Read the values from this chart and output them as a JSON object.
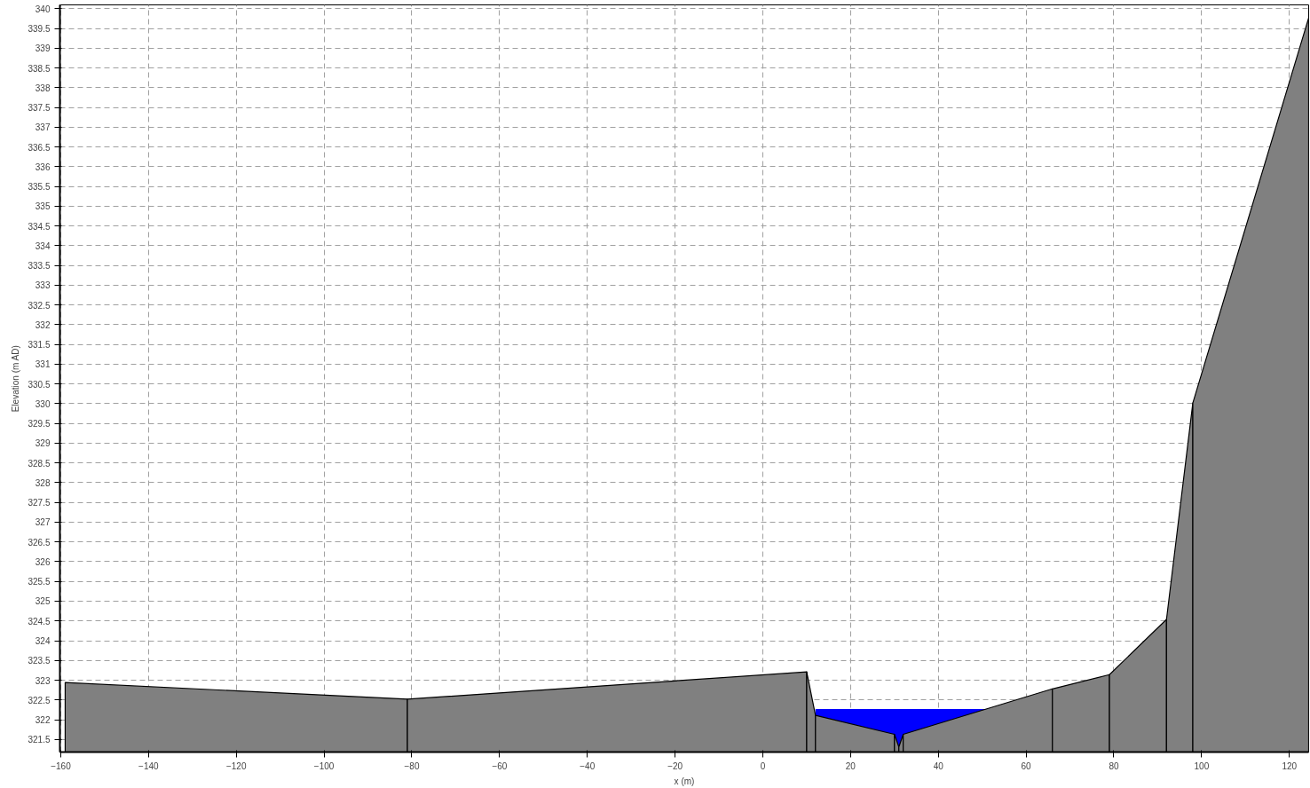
{
  "chart_data": {
    "type": "area",
    "xlabel": "x (m)",
    "ylabel": "Elevation (m AD)",
    "xlim": [
      -160.2,
      124.4
    ],
    "ylim": [
      321.18,
      340.1
    ],
    "xticks": [
      -160,
      -140,
      -120,
      -100,
      -80,
      -60,
      -40,
      -20,
      0,
      20,
      40,
      60,
      80,
      100,
      120
    ],
    "yticks": [
      321.5,
      322,
      322.5,
      323,
      323.5,
      324,
      324.5,
      325,
      325.5,
      326,
      326.5,
      327,
      327.5,
      328,
      328.5,
      329,
      329.5,
      330,
      330.5,
      331,
      331.5,
      332,
      332.5,
      333,
      333.5,
      334,
      334.5,
      335,
      335.5,
      336,
      336.5,
      337,
      337.5,
      338,
      338.5,
      339,
      339.5,
      340
    ],
    "grid": true,
    "line_style": "dashed",
    "series": [
      {
        "color": "#0000ff",
        "x": [
          12,
          51
        ],
        "values": [
          322.27,
          322.27
        ]
      },
      {
        "color": "#808080",
        "x": [
          -159,
          -81,
          10,
          12,
          30,
          31,
          32,
          66,
          79,
          92,
          98,
          124.4
        ],
        "values": [
          322.94,
          322.52,
          323.21,
          322.11,
          321.63,
          321.31,
          321.63,
          322.78,
          323.14,
          324.54,
          330.02,
          339.77
        ]
      }
    ]
  }
}
